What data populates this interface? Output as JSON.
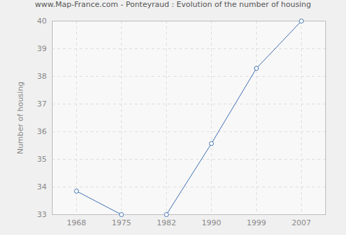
{
  "chart_data": {
    "type": "line",
    "title": "www.Map-France.com - Ponteyraud : Evolution of the number of housing",
    "y_label": "Number of housing",
    "categories": [
      "1968",
      "1975",
      "1982",
      "1990",
      "1999",
      "2007"
    ],
    "values": [
      33.85,
      33,
      33,
      35.57,
      38.29,
      40
    ],
    "color": "#3d6fb0",
    "marker": "circle",
    "grid": true,
    "ylim": [
      33,
      40
    ],
    "yticks": [
      33,
      34,
      35,
      36,
      37,
      38,
      39,
      40
    ]
  }
}
